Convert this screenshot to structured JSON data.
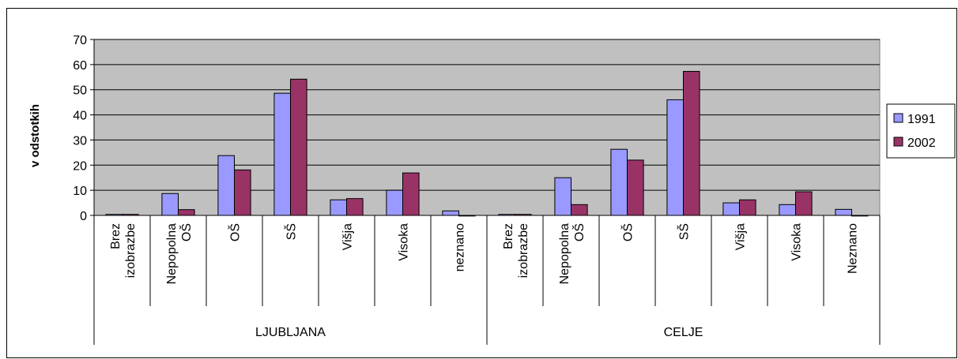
{
  "chart_data": {
    "type": "bar",
    "ylabel": "v odstotkih",
    "ylim": [
      0,
      70
    ],
    "y_ticks": [
      0,
      10,
      20,
      30,
      40,
      50,
      60,
      70
    ],
    "grid": true,
    "legend_position": "right",
    "groups": [
      {
        "name": "LJUBLJANA",
        "categories": [
          "Brez\nizobrazbe",
          "Nepopolna\nOŠ",
          "OŠ",
          "SŠ",
          "Višja",
          "Visoka",
          "neznano"
        ]
      },
      {
        "name": "CELJE",
        "categories": [
          "Brez\nizobrazbe",
          "Nepopolna\nOŠ",
          "OŠ",
          "SŠ",
          "Višja",
          "Visoka",
          "Neznano"
        ]
      }
    ],
    "series": [
      {
        "name": "1991",
        "color": "#9999ff",
        "values": [
          0.4,
          8.7,
          23.8,
          48.6,
          6.2,
          10.0,
          1.8,
          0.4,
          15.0,
          26.3,
          46.0,
          5.0,
          4.3,
          2.4
        ]
      },
      {
        "name": "2002",
        "color": "#993366",
        "values": [
          0.4,
          2.3,
          18.1,
          54.2,
          6.7,
          16.9,
          0.0,
          0.4,
          4.3,
          22.0,
          57.3,
          6.2,
          9.4,
          0.0
        ]
      }
    ],
    "plot_background": "#c0c0c0"
  }
}
